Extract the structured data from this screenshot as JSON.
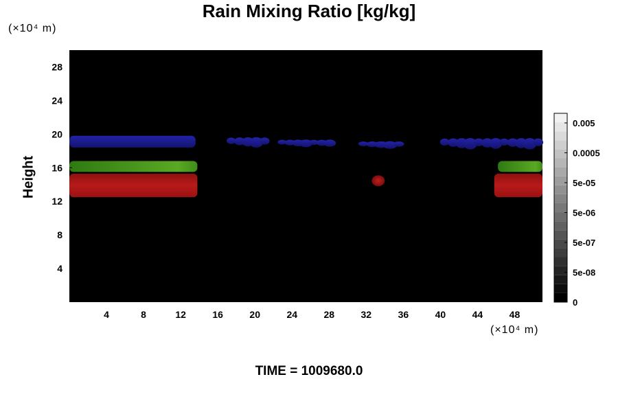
{
  "chart_data": {
    "type": "heatmap",
    "title": "Rain Mixing Ratio [kg/kg]",
    "xlabel": "",
    "ylabel": "Height",
    "x_unit": "(×10⁴ m)",
    "y_unit": "(×10⁴ m)",
    "xlim": [
      0,
      51
    ],
    "ylim": [
      0,
      30
    ],
    "x_ticks": [
      4,
      8,
      12,
      16,
      20,
      24,
      28,
      32,
      36,
      40,
      44,
      48
    ],
    "y_ticks": [
      4,
      8,
      12,
      16,
      20,
      24,
      28
    ],
    "background_color": "#000000",
    "colorbar": {
      "labels": [
        "0.005",
        "0.0005",
        "5e-05",
        "5e-06",
        "5e-07",
        "5e-08",
        "0"
      ],
      "levels": 21,
      "min_color": "#000000",
      "max_color": "#f2f2f2"
    },
    "features": [
      {
        "color": "#1a1a90",
        "x_range": [
          0,
          13.6
        ],
        "y_range": [
          18.4,
          19.8
        ]
      },
      {
        "color": "#3c8a18",
        "x_range": [
          0,
          13.8
        ],
        "y_range": [
          15.5,
          16.8
        ]
      },
      {
        "color": "#a81414",
        "x_range": [
          0,
          13.8
        ],
        "y_range": [
          12.5,
          15.3
        ]
      },
      {
        "color": "#3c8a18",
        "x_range": [
          46.2,
          51
        ],
        "y_range": [
          15.5,
          16.8
        ]
      },
      {
        "color": "#a81414",
        "x_range": [
          45.8,
          51
        ],
        "y_range": [
          12.5,
          15.3
        ]
      },
      {
        "color": "#a81414",
        "x_range": [
          32.6,
          34.0
        ],
        "y_range": [
          13.8,
          15.1
        ]
      },
      {
        "color": "#1a1a90",
        "x_range": [
          17.0,
          21.5
        ],
        "y_range": [
          18.6,
          19.7
        ]
      },
      {
        "color": "#1a1a90",
        "x_range": [
          22.5,
          28.5
        ],
        "y_range": [
          18.6,
          19.4
        ]
      },
      {
        "color": "#1a1a90",
        "x_range": [
          31.2,
          36.0
        ],
        "y_range": [
          18.4,
          19.2
        ]
      },
      {
        "color": "#1a1a90",
        "x_range": [
          40.0,
          51
        ],
        "y_range": [
          18.4,
          19.6
        ]
      }
    ]
  },
  "footer": {
    "time_label": "TIME = 1009680.0"
  }
}
